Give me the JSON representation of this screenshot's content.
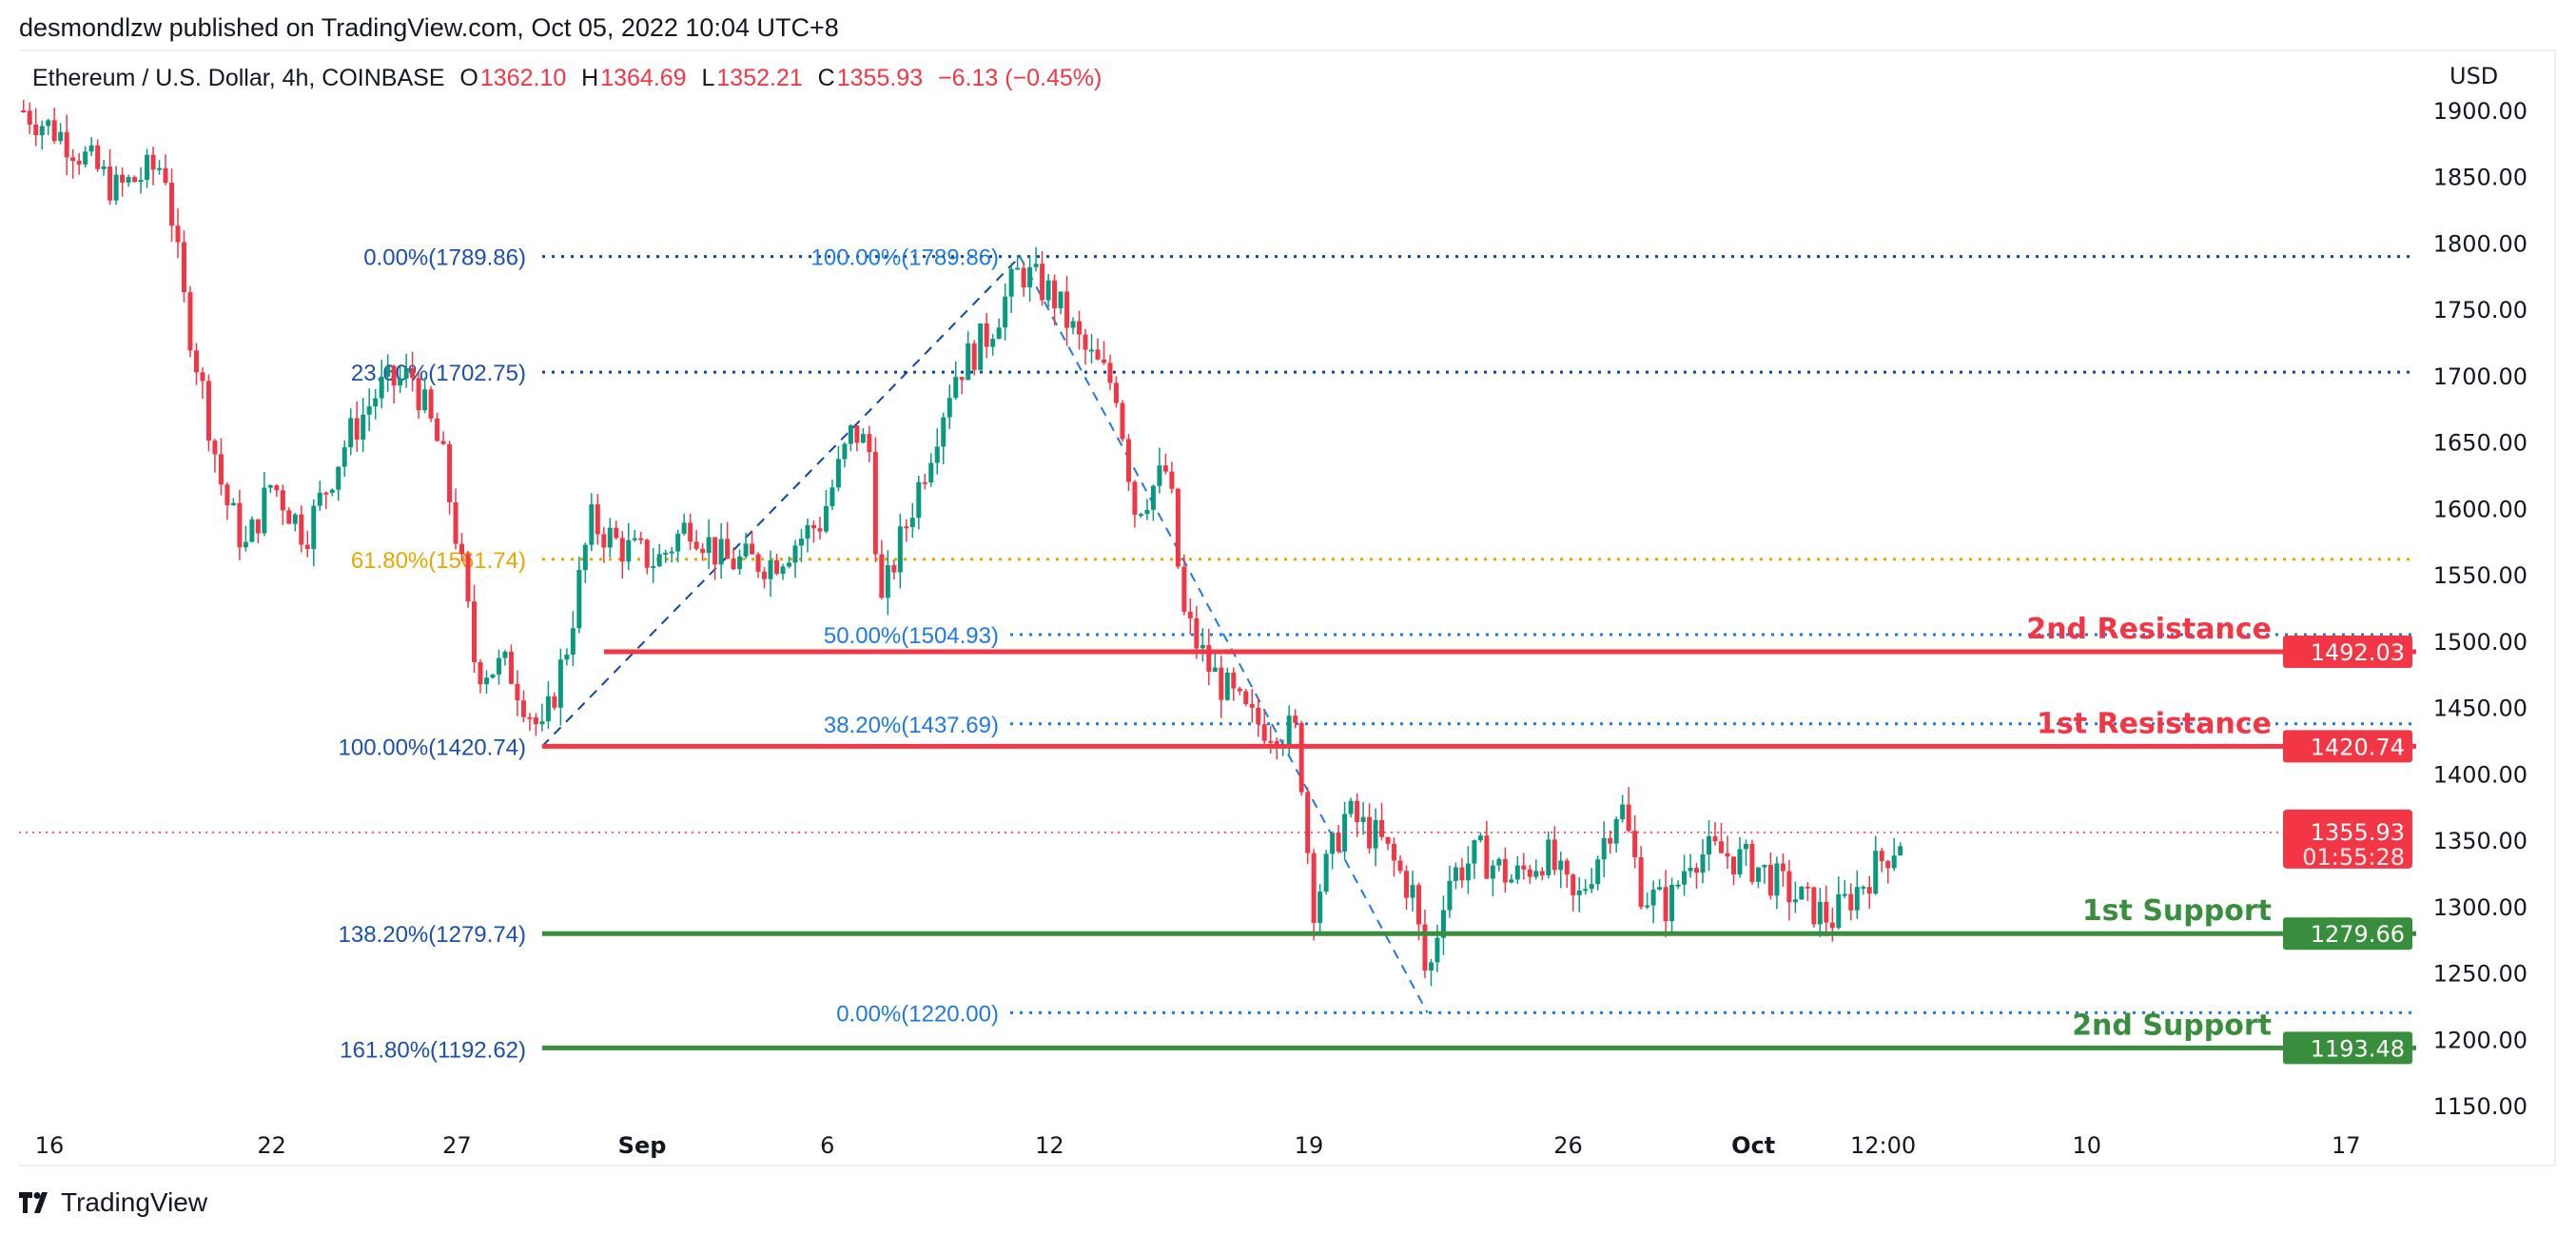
{
  "publisher": "desmondlzw published on TradingView.com, Oct 05, 2022 10:04 UTC+8",
  "legend": {
    "symbol": "Ethereum / U.S. Dollar, 4h, COINBASE",
    "o_label": "O",
    "o": "1362.10",
    "h_label": "H",
    "h": "1364.69",
    "l_label": "L",
    "l": "1352.21",
    "c_label": "C",
    "c": "1355.93",
    "change": "−6.13 (−0.45%)"
  },
  "currency": "USD",
  "footer": {
    "brand": "TradingView"
  },
  "colors": {
    "up": "#089981",
    "down": "#f23645",
    "resistance": "#f23645",
    "support": "#388e3c",
    "fib_dark": "#0d47a1",
    "fib_light": "#1e7ae0",
    "fib_gold": "#e6a700"
  },
  "chart_data": {
    "type": "candlestick",
    "title": "Ethereum / U.S. Dollar, 4h, COINBASE",
    "ylim": [
      1130,
      1920
    ],
    "y_ticks": [
      "1900.00",
      "1850.00",
      "1800.00",
      "1750.00",
      "1700.00",
      "1650.00",
      "1600.00",
      "1550.00",
      "1500.00",
      "1450.00",
      "1400.00",
      "1350.00",
      "1300.00",
      "1250.00",
      "1200.00",
      "1150.00"
    ],
    "x_ticks": [
      {
        "day": 0,
        "label": "16"
      },
      {
        "day": 6,
        "label": "22"
      },
      {
        "day": 11,
        "label": "27"
      },
      {
        "day": 16,
        "label": "Sep"
      },
      {
        "day": 21,
        "label": "6"
      },
      {
        "day": 27,
        "label": "12"
      },
      {
        "day": 34,
        "label": "19"
      },
      {
        "day": 41,
        "label": "26"
      },
      {
        "day": 46,
        "label": "Oct"
      },
      {
        "day": 49.5,
        "label": "12:00"
      },
      {
        "day": 55,
        "label": "10"
      },
      {
        "day": 62,
        "label": "17"
      }
    ],
    "price_path_waypoints": [
      [
        -0.7,
        1900
      ],
      [
        0.4,
        1880
      ],
      [
        1.8,
        1840
      ],
      [
        3.1,
        1860
      ],
      [
        3.6,
        1760
      ],
      [
        4.2,
        1680
      ],
      [
        4.7,
        1610
      ],
      [
        5.3,
        1570
      ],
      [
        6,
        1620
      ],
      [
        6.9,
        1580
      ],
      [
        8,
        1650
      ],
      [
        8.9,
        1690
      ],
      [
        9.8,
        1700
      ],
      [
        10.6,
        1640
      ],
      [
        11.1,
        1560
      ],
      [
        11.5,
        1480
      ],
      [
        12.4,
        1480
      ],
      [
        13.3,
        1428
      ],
      [
        14,
        1500
      ],
      [
        14.6,
        1590
      ],
      [
        15.5,
        1570
      ],
      [
        16.4,
        1560
      ],
      [
        17.3,
        1590
      ],
      [
        18.2,
        1560
      ],
      [
        19.5,
        1560
      ],
      [
        20.8,
        1590
      ],
      [
        21.7,
        1660
      ],
      [
        22.2,
        1640
      ],
      [
        22.4,
        1520
      ],
      [
        22.8,
        1560
      ],
      [
        23.5,
        1620
      ],
      [
        24.4,
        1700
      ],
      [
        25.3,
        1730
      ],
      [
        26.2,
        1780
      ],
      [
        27.1,
        1760
      ],
      [
        27.9,
        1720
      ],
      [
        28.8,
        1690
      ],
      [
        29.3,
        1600
      ],
      [
        30.2,
        1630
      ],
      [
        30.6,
        1520
      ],
      [
        31.3,
        1480
      ],
      [
        32.4,
        1440
      ],
      [
        33.7,
        1430
      ],
      [
        34.1,
        1300
      ],
      [
        35,
        1370
      ],
      [
        35.9,
        1350
      ],
      [
        36.8,
        1310
      ],
      [
        37.2,
        1240
      ],
      [
        37.7,
        1320
      ],
      [
        38.6,
        1340
      ],
      [
        39.5,
        1320
      ],
      [
        40.4,
        1340
      ],
      [
        41.2,
        1300
      ],
      [
        42.4,
        1380
      ],
      [
        43,
        1310
      ],
      [
        43.7,
        1300
      ],
      [
        44.3,
        1340
      ],
      [
        45.2,
        1340
      ],
      [
        46.1,
        1330
      ],
      [
        47,
        1310
      ],
      [
        48.1,
        1290
      ],
      [
        49,
        1320
      ],
      [
        50.1,
        1356
      ]
    ],
    "last_price": {
      "value": "1355.93",
      "countdown": "01:55:28",
      "numeric": 1355.93
    },
    "fib_retracement_1": [
      {
        "label": "0.00%(1789.86)",
        "price": 1789.86,
        "tone": "dark"
      },
      {
        "label": "23.60%(1702.75)",
        "price": 1702.75,
        "tone": "dark"
      },
      {
        "label": "61.80%(1561.74)",
        "price": 1561.74,
        "tone": "gold"
      },
      {
        "label": "100.00%(1420.74)",
        "price": 1420.74,
        "tone": "dark"
      },
      {
        "label": "138.20%(1279.74)",
        "price": 1279.74,
        "tone": "dark"
      },
      {
        "label": "161.80%(1192.62)",
        "price": 1192.62,
        "tone": "dark"
      }
    ],
    "fib_retracement_2": [
      {
        "label": "100.00%(1789.86)",
        "price": 1789.86
      },
      {
        "label": "50.00%(1504.93)",
        "price": 1504.93
      },
      {
        "label": "38.20%(1437.69)",
        "price": 1437.69
      },
      {
        "label": "0.00%(1220.00)",
        "price": 1220.0
      }
    ],
    "levels": [
      {
        "name": "2nd Resistance",
        "value": "1492.03",
        "price": 1492.03,
        "kind": "resistance"
      },
      {
        "name": "1st Resistance",
        "value": "1420.74",
        "price": 1420.74,
        "kind": "resistance"
      },
      {
        "name": "1st Support",
        "value": "1279.66",
        "price": 1279.66,
        "kind": "support"
      },
      {
        "name": "2nd Support",
        "value": "1193.48",
        "price": 1193.48,
        "kind": "support"
      }
    ]
  }
}
